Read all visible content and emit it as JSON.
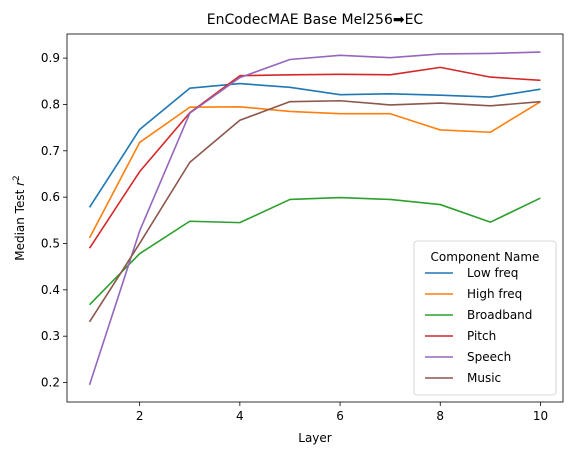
{
  "chart_data": {
    "type": "line",
    "title": "EnCodecMAE Base Mel256➡EC",
    "xlabel": "Layer",
    "ylabel_main": "Median Test ",
    "ylabel_var": "r",
    "ylabel_sup": "2",
    "xlim": [
      0.55,
      10.45
    ],
    "ylim": [
      0.158,
      0.952
    ],
    "xticks": [
      2,
      4,
      6,
      8,
      10
    ],
    "xtick_labels": [
      "2",
      "4",
      "6",
      "8",
      "10"
    ],
    "yticks": [
      0.2,
      0.3,
      0.4,
      0.5,
      0.6,
      0.7,
      0.8,
      0.9
    ],
    "ytick_labels": [
      "0.2",
      "0.3",
      "0.4",
      "0.5",
      "0.6",
      "0.7",
      "0.8",
      "0.9"
    ],
    "grid": false,
    "legend": {
      "title": "Component Name",
      "position": "lower-right"
    },
    "x": [
      1,
      2,
      3,
      4,
      5,
      6,
      7,
      8,
      9,
      10
    ],
    "series": [
      {
        "name": "Low freq",
        "color": "#1f77b4",
        "values": [
          0.578,
          0.746,
          0.835,
          0.845,
          0.837,
          0.821,
          0.823,
          0.82,
          0.816,
          0.833
        ]
      },
      {
        "name": "High freq",
        "color": "#ff7f0e",
        "values": [
          0.512,
          0.718,
          0.794,
          0.795,
          0.785,
          0.78,
          0.78,
          0.745,
          0.74,
          0.806
        ]
      },
      {
        "name": "Broadband",
        "color": "#2ca02c",
        "values": [
          0.368,
          0.478,
          0.548,
          0.545,
          0.595,
          0.599,
          0.595,
          0.584,
          0.546,
          0.598
        ]
      },
      {
        "name": "Pitch",
        "color": "#d62728",
        "values": [
          0.49,
          0.655,
          0.782,
          0.862,
          0.864,
          0.865,
          0.864,
          0.88,
          0.859,
          0.852
        ]
      },
      {
        "name": "Speech",
        "color": "#9467bd",
        "values": [
          0.195,
          0.527,
          0.781,
          0.858,
          0.897,
          0.906,
          0.901,
          0.909,
          0.91,
          0.913
        ]
      },
      {
        "name": "Music",
        "color": "#8c564b",
        "values": [
          0.331,
          0.5,
          0.675,
          0.766,
          0.806,
          0.808,
          0.799,
          0.803,
          0.797,
          0.806
        ]
      }
    ]
  }
}
